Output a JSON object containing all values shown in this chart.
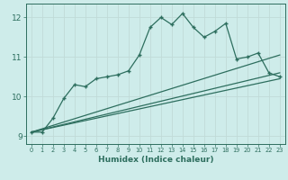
{
  "title": "",
  "xlabel": "Humidex (Indice chaleur)",
  "ylabel": "",
  "bg_color": "#ceecea",
  "line_color": "#2d6e5e",
  "grid_color": "#b8dbd8",
  "xlim": [
    -0.5,
    23.5
  ],
  "ylim": [
    8.8,
    12.35
  ],
  "yticks": [
    9,
    10,
    11,
    12
  ],
  "xticks": [
    0,
    1,
    2,
    3,
    4,
    5,
    6,
    7,
    8,
    9,
    10,
    11,
    12,
    13,
    14,
    15,
    16,
    17,
    18,
    19,
    20,
    21,
    22,
    23
  ],
  "main_x": [
    0,
    1,
    2,
    3,
    4,
    5,
    6,
    7,
    8,
    9,
    10,
    11,
    12,
    13,
    14,
    15,
    16,
    17,
    18,
    19,
    20,
    21,
    22,
    23
  ],
  "main_y": [
    9.1,
    9.1,
    9.45,
    9.95,
    10.3,
    10.25,
    10.45,
    10.5,
    10.55,
    10.65,
    11.05,
    11.75,
    12.0,
    11.82,
    12.1,
    11.75,
    11.5,
    11.65,
    11.85,
    10.95,
    11.0,
    11.1,
    10.6,
    10.5
  ],
  "line1_x": [
    0,
    23
  ],
  "line1_y": [
    9.1,
    10.45
  ],
  "line2_x": [
    0,
    23
  ],
  "line2_y": [
    9.1,
    10.6
  ],
  "line3_x": [
    0,
    23
  ],
  "line3_y": [
    9.1,
    11.05
  ]
}
